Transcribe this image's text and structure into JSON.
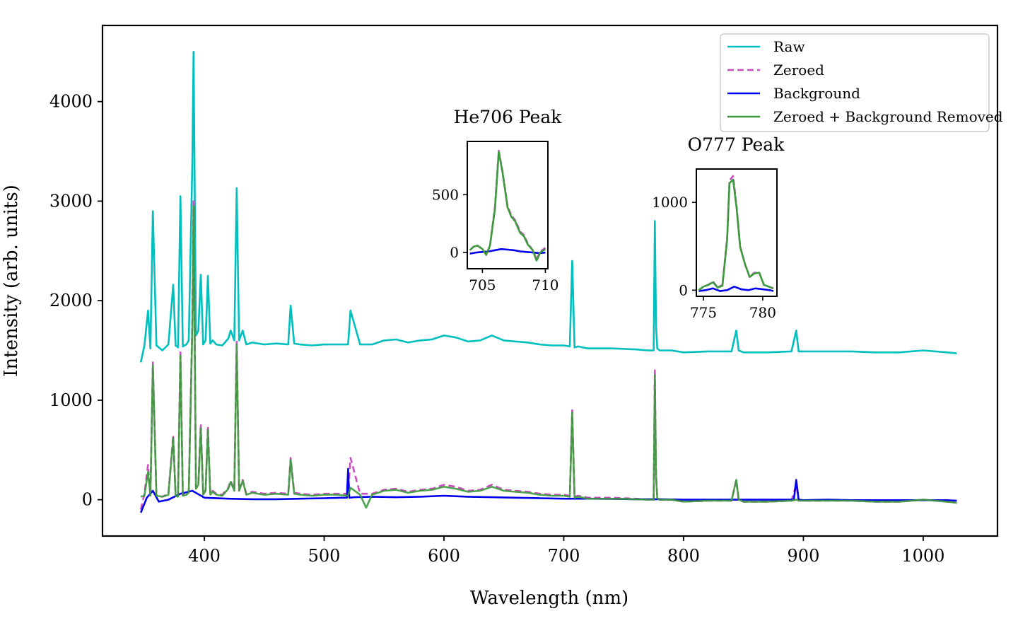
{
  "chart_data": {
    "type": "line",
    "xlabel": "Wavelength (nm)",
    "ylabel": "Intensity (arb. units)",
    "xlim": [
      315,
      1062
    ],
    "ylim": [
      -365,
      4765
    ],
    "xticks": [
      400,
      500,
      600,
      700,
      800,
      900,
      1000
    ],
    "yticks": [
      0,
      1000,
      2000,
      3000,
      4000
    ],
    "grid": false,
    "legend_position": "top-right",
    "series": [
      {
        "name": "Raw",
        "color": "#00bfbf",
        "style": "solid",
        "key": "raw",
        "x": [
          347,
          350,
          353,
          355,
          357,
          360,
          365,
          370,
          374,
          376,
          378,
          380,
          382,
          385,
          387,
          390,
          391,
          393,
          395,
          397,
          399,
          401,
          403,
          405,
          407,
          410,
          415,
          420,
          422,
          425,
          427,
          429,
          432,
          435,
          440,
          450,
          460,
          470,
          472,
          475,
          480,
          490,
          500,
          510,
          520,
          522,
          530,
          540,
          550,
          560,
          570,
          580,
          590,
          600,
          610,
          620,
          630,
          640,
          650,
          660,
          670,
          680,
          690,
          700,
          705,
          707,
          709,
          712,
          720,
          740,
          760,
          770,
          775,
          776,
          777,
          778,
          779,
          780,
          790,
          800,
          820,
          840,
          844,
          846,
          850,
          870,
          890,
          894,
          896,
          900,
          920,
          940,
          960,
          980,
          1000,
          1020,
          1028
        ],
        "y": [
          1380,
          1550,
          1900,
          1520,
          2900,
          1550,
          1500,
          1560,
          2160,
          1550,
          1530,
          3050,
          1540,
          1560,
          1600,
          3400,
          4500,
          1650,
          1700,
          2260,
          1560,
          1600,
          2250,
          1570,
          1600,
          1560,
          1550,
          1620,
          1700,
          1600,
          3130,
          1600,
          1700,
          1560,
          1580,
          1560,
          1570,
          1560,
          1950,
          1570,
          1560,
          1550,
          1560,
          1560,
          1560,
          1900,
          1560,
          1560,
          1600,
          1610,
          1580,
          1600,
          1610,
          1650,
          1630,
          1590,
          1600,
          1650,
          1600,
          1590,
          1580,
          1560,
          1550,
          1550,
          1540,
          2400,
          1530,
          1540,
          1520,
          1520,
          1510,
          1500,
          1500,
          2800,
          1750,
          1520,
          1510,
          1500,
          1500,
          1480,
          1490,
          1490,
          1700,
          1500,
          1480,
          1480,
          1490,
          1700,
          1490,
          1490,
          1490,
          1490,
          1480,
          1480,
          1500,
          1480,
          1470
        ]
      },
      {
        "name": "Zeroed",
        "color": "#cc4cc4",
        "style": "dashed",
        "key": "zeroed",
        "x": [
          347,
          350,
          353,
          355,
          357,
          360,
          365,
          370,
          374,
          376,
          378,
          380,
          382,
          385,
          387,
          390,
          391,
          393,
          395,
          397,
          399,
          401,
          403,
          405,
          407,
          410,
          415,
          420,
          422,
          425,
          427,
          429,
          432,
          435,
          440,
          450,
          460,
          470,
          472,
          475,
          480,
          490,
          500,
          510,
          520,
          522,
          530,
          540,
          550,
          560,
          570,
          580,
          590,
          600,
          610,
          620,
          630,
          640,
          650,
          660,
          670,
          680,
          690,
          700,
          705,
          707,
          709,
          712,
          720,
          740,
          760,
          770,
          775,
          776,
          777,
          778,
          779,
          780,
          790,
          800,
          820,
          840,
          844,
          846,
          850,
          870,
          890,
          894,
          896,
          900,
          920,
          940,
          960,
          980,
          1000,
          1020,
          1028
        ],
        "y": [
          -100,
          60,
          350,
          40,
          1380,
          40,
          30,
          60,
          650,
          50,
          40,
          1500,
          50,
          60,
          80,
          1800,
          3000,
          120,
          160,
          760,
          60,
          100,
          740,
          60,
          90,
          60,
          50,
          120,
          190,
          100,
          1600,
          100,
          200,
          60,
          80,
          60,
          70,
          60,
          420,
          70,
          60,
          50,
          60,
          60,
          60,
          420,
          60,
          60,
          100,
          110,
          80,
          100,
          110,
          150,
          130,
          90,
          100,
          150,
          100,
          90,
          80,
          60,
          50,
          50,
          40,
          900,
          30,
          40,
          20,
          20,
          10,
          0,
          0,
          1300,
          250,
          20,
          10,
          0,
          0,
          -20,
          -10,
          -10,
          200,
          0,
          -20,
          -20,
          -10,
          150,
          -10,
          -10,
          -10,
          -10,
          -20,
          -20,
          0,
          -20,
          -30
        ]
      },
      {
        "name": "Background",
        "color": "#0000ee",
        "style": "solid",
        "key": "background",
        "x": [
          347,
          352,
          357,
          362,
          370,
          380,
          390,
          400,
          420,
          440,
          460,
          480,
          500,
          515,
          519,
          520,
          521,
          525,
          540,
          560,
          580,
          600,
          620,
          640,
          660,
          680,
          700,
          720,
          740,
          760,
          780,
          800,
          820,
          840,
          860,
          880,
          892,
          894,
          896,
          900,
          920,
          940,
          960,
          980,
          1000,
          1020,
          1028
        ],
        "y": [
          -130,
          20,
          90,
          -20,
          0,
          60,
          90,
          20,
          10,
          5,
          5,
          10,
          15,
          20,
          20,
          310,
          20,
          25,
          30,
          25,
          30,
          40,
          30,
          25,
          20,
          15,
          10,
          10,
          8,
          5,
          5,
          0,
          0,
          0,
          0,
          0,
          0,
          200,
          0,
          -5,
          0,
          -5,
          -5,
          -5,
          -5,
          -5,
          -10
        ]
      },
      {
        "name": "Zeroed + Background Removed",
        "color": "#3c9a3c",
        "style": "solid",
        "key": "removed",
        "x": [
          347,
          350,
          353,
          355,
          357,
          360,
          365,
          370,
          374,
          376,
          378,
          380,
          382,
          385,
          387,
          390,
          391,
          393,
          395,
          397,
          399,
          401,
          403,
          405,
          407,
          410,
          415,
          420,
          422,
          425,
          427,
          429,
          432,
          435,
          440,
          450,
          460,
          470,
          472,
          475,
          480,
          490,
          500,
          510,
          520,
          522,
          530,
          535,
          540,
          550,
          560,
          570,
          580,
          590,
          600,
          610,
          620,
          630,
          640,
          650,
          660,
          670,
          680,
          690,
          700,
          705,
          707,
          709,
          712,
          720,
          740,
          760,
          770,
          775,
          776,
          777,
          778,
          779,
          780,
          790,
          800,
          820,
          840,
          844,
          846,
          850,
          870,
          890,
          894,
          896,
          900,
          920,
          940,
          960,
          980,
          1000,
          1020,
          1028
        ],
        "y": [
          30,
          40,
          280,
          40,
          1350,
          40,
          30,
          50,
          620,
          40,
          30,
          1450,
          40,
          50,
          70,
          1750,
          2950,
          110,
          150,
          720,
          50,
          90,
          700,
          50,
          80,
          50,
          40,
          110,
          180,
          90,
          1560,
          90,
          190,
          50,
          70,
          50,
          60,
          50,
          400,
          60,
          50,
          40,
          50,
          50,
          40,
          120,
          50,
          -80,
          50,
          90,
          100,
          70,
          90,
          100,
          130,
          110,
          80,
          90,
          130,
          90,
          80,
          70,
          50,
          40,
          40,
          30,
          880,
          20,
          30,
          10,
          10,
          5,
          0,
          0,
          1250,
          240,
          15,
          5,
          0,
          0,
          -20,
          -10,
          -10,
          200,
          0,
          -20,
          -20,
          -10,
          0,
          -10,
          -10,
          -10,
          -10,
          -20,
          -20,
          0,
          -20,
          -30
        ]
      }
    ],
    "insets": [
      {
        "title": "He706 Peak",
        "xlim": [
          703.8,
          710.2
        ],
        "ylim": [
          -140,
          960
        ],
        "xticks": [
          705,
          710
        ],
        "yticks": [
          0,
          500
        ],
        "series": {
          "raw": null,
          "zeroed": {
            "x": [
              704,
              704.3,
              704.6,
              705,
              705.3,
              705.6,
              706,
              706.3,
              706.6,
              707,
              707.3,
              707.6,
              708,
              708.3,
              708.6,
              709,
              709.3,
              709.6,
              710
            ],
            "y": [
              20,
              50,
              60,
              30,
              -20,
              60,
              400,
              880,
              700,
              400,
              320,
              280,
              180,
              150,
              80,
              20,
              -60,
              10,
              40
            ]
          },
          "background": {
            "x": [
              704,
              704.5,
              705,
              705.5,
              706,
              706.5,
              707,
              707.5,
              708,
              708.5,
              709,
              709.5,
              710
            ],
            "y": [
              -10,
              0,
              5,
              10,
              20,
              30,
              25,
              20,
              10,
              5,
              0,
              -5,
              0
            ]
          },
          "removed": {
            "x": [
              704,
              704.3,
              704.6,
              705,
              705.3,
              705.6,
              706,
              706.3,
              706.6,
              707,
              707.3,
              707.6,
              708,
              708.3,
              708.6,
              709,
              709.3,
              709.6,
              710
            ],
            "y": [
              20,
              50,
              60,
              30,
              -20,
              60,
              380,
              870,
              690,
              390,
              310,
              270,
              170,
              140,
              70,
              20,
              -70,
              0,
              30
            ]
          }
        }
      },
      {
        "title": "O777 Peak",
        "xlim": [
          774.4,
          781.2
        ],
        "ylim": [
          -70,
          1380
        ],
        "xticks": [
          775,
          780
        ],
        "yticks": [
          0,
          1000
        ],
        "series": {
          "raw": null,
          "zeroed": {
            "x": [
              774.6,
              775,
              775.4,
              775.8,
              776.2,
              776.6,
              777,
              777.2,
              777.5,
              777.8,
              778.1,
              778.5,
              778.9,
              779.3,
              779.7,
              780.1,
              780.5,
              780.9
            ],
            "y": [
              0,
              40,
              60,
              100,
              30,
              60,
              600,
              1250,
              1300,
              950,
              500,
              300,
              150,
              200,
              200,
              60,
              40,
              20
            ]
          },
          "background": {
            "x": [
              774.6,
              775.2,
              775.8,
              776.4,
              777,
              777.6,
              778.2,
              778.8,
              779.4,
              780,
              780.6,
              780.9
            ],
            "y": [
              -10,
              0,
              20,
              -10,
              0,
              40,
              10,
              0,
              20,
              10,
              0,
              -10
            ]
          },
          "removed": {
            "x": [
              774.6,
              775,
              775.4,
              775.8,
              776.2,
              776.6,
              777,
              777.2,
              777.5,
              777.8,
              778.1,
              778.5,
              778.9,
              779.3,
              779.7,
              780.1,
              780.5,
              780.9
            ],
            "y": [
              0,
              40,
              60,
              90,
              30,
              50,
              580,
              1220,
              1260,
              930,
              490,
              300,
              150,
              190,
              200,
              60,
              40,
              20
            ]
          }
        }
      }
    ]
  }
}
